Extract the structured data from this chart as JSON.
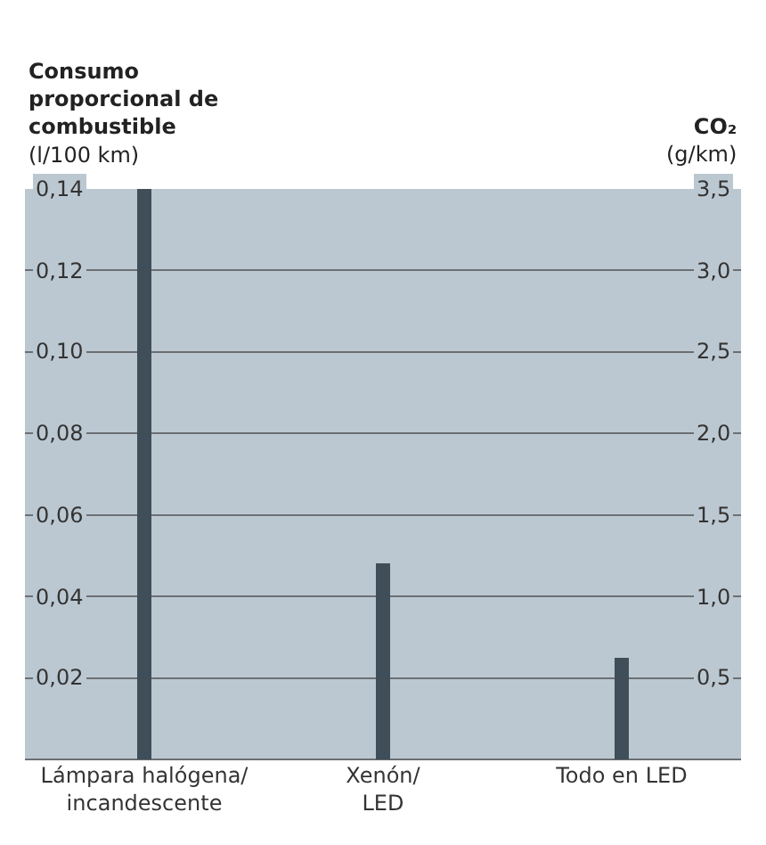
{
  "chart_data": {
    "type": "bar",
    "ylabel": "Consumo\nproporcional de\ncombustible\n(l/100 km)",
    "y2label": "CO₂\n(g/km)",
    "categories": [
      "Lámpara halógena/\nincandescente",
      "Xenón/\nLED",
      "Todo en LED"
    ],
    "values": [
      0.14,
      0.048,
      0.025
    ],
    "color": "#3f4e59",
    "ylim": [
      0,
      0.14
    ],
    "yticks": [
      {
        "value": 0.02,
        "label": "0,02"
      },
      {
        "value": 0.04,
        "label": "0,04"
      },
      {
        "value": 0.06,
        "label": "0,06"
      },
      {
        "value": 0.08,
        "label": "0,08"
      },
      {
        "value": 0.1,
        "label": "0,10"
      },
      {
        "value": 0.12,
        "label": "0,12"
      },
      {
        "value": 0.14,
        "label": "0,14"
      }
    ],
    "y2lim": [
      0,
      3.5
    ],
    "y2ticks": [
      {
        "value": 0.5,
        "label": "0,5"
      },
      {
        "value": 1.0,
        "label": "1,0"
      },
      {
        "value": 1.5,
        "label": "1,5"
      },
      {
        "value": 2.0,
        "label": "2,0"
      },
      {
        "value": 2.5,
        "label": "2,5"
      },
      {
        "value": 3.0,
        "label": "3,0"
      },
      {
        "value": 3.5,
        "label": "3,5"
      }
    ],
    "grid": "y"
  }
}
